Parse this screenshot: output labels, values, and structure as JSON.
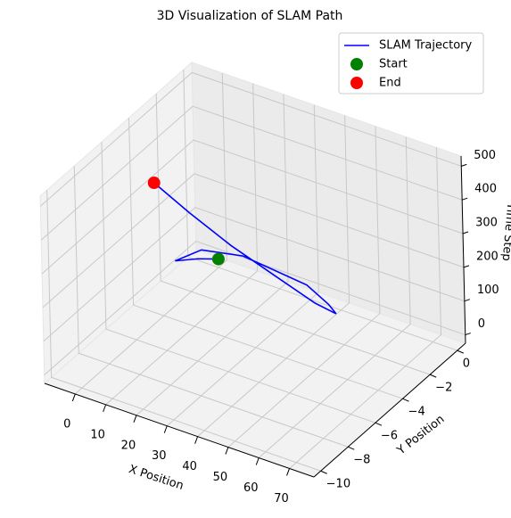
{
  "chart_data": {
    "type": "line3d",
    "title": "3D Visualization of SLAM Path",
    "xlabel": "X Position",
    "ylabel": "Y Position",
    "zlabel": "Time Step",
    "xlim": [
      -10,
      78
    ],
    "ylim": [
      -10.5,
      0.6
    ],
    "zlim": [
      -25,
      530
    ],
    "xticks": [
      0,
      10,
      20,
      30,
      40,
      50,
      60,
      70
    ],
    "yticks": [
      {
        "value": -10,
        "label": "−10"
      },
      {
        "value": -8,
        "label": "−8"
      },
      {
        "value": -6,
        "label": "−6"
      },
      {
        "value": -4,
        "label": "−4"
      },
      {
        "value": -2,
        "label": "−2"
      },
      0
    ],
    "zticks": [
      0,
      100,
      200,
      300,
      400,
      500
    ],
    "grid": true,
    "legend": "upper right",
    "series": [
      {
        "name": "SLAM Trajectory",
        "color": "#0000ff",
        "x": [
          0,
          -3,
          -6,
          0,
          15,
          30,
          45,
          58,
          65,
          60,
          50,
          35,
          22,
          10.4
        ],
        "y": [
          0,
          -0.8,
          -1.8,
          -1.2,
          -1.5,
          -2.5,
          -3.5,
          -4.8,
          -5.8,
          -6.2,
          -6.5,
          -6.7,
          -6.8,
          -6.75
        ],
        "z": [
          0,
          20,
          40,
          70,
          110,
          150,
          190,
          220,
          250,
          280,
          330,
          390,
          450,
          500
        ]
      }
    ],
    "start": {
      "name": "Start",
      "color": "#008000",
      "x": 0,
      "y": 0,
      "z": 0
    },
    "end": {
      "name": "End",
      "color": "#ff0000",
      "x": 10.4,
      "y": -6.75,
      "z": 500
    }
  }
}
